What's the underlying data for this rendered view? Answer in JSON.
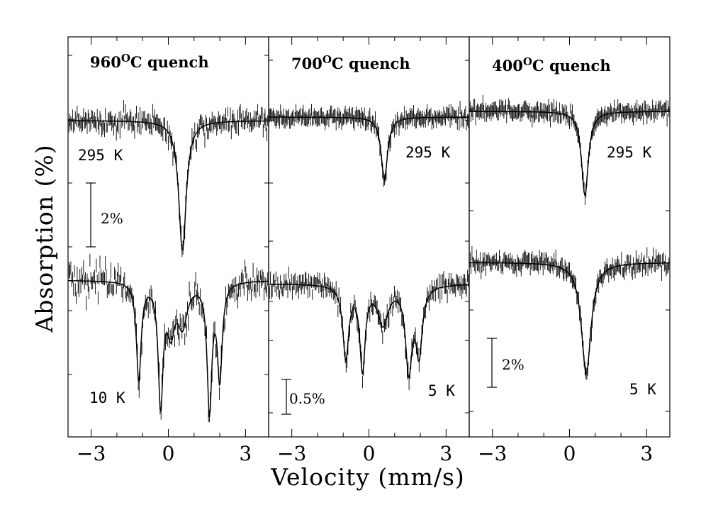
{
  "chart_data": {
    "type": "line",
    "figure": {
      "xlabel": "Velocity (mm/s)",
      "ylabel": "Absorption (%)",
      "xlim": [
        -3.9,
        3.9
      ],
      "xticks": [
        -3,
        0,
        3
      ],
      "xtick_labels": [
        "−3",
        "0",
        "3"
      ]
    },
    "panels": [
      {
        "title": "960",
        "title_sup": "O",
        "title_rest": "C quench",
        "scale_bar": {
          "label": "2%",
          "value_percent": 2
        },
        "spectra": [
          {
            "temperature": "295 K",
            "baseline_percent": 0,
            "peaks": [
              {
                "v": 0.55,
                "depth": 4.1,
                "width": 0.35
              }
            ],
            "noise_percent": 0.35
          },
          {
            "temperature": "10 K",
            "baseline_percent": 0,
            "peaks": [
              {
                "v": -1.15,
                "depth": 3.1,
                "width": 0.22
              },
              {
                "v": -0.3,
                "depth": 3.8,
                "width": 0.22
              },
              {
                "v": 0.55,
                "depth": 1.3,
                "width": 0.45
              },
              {
                "v": 1.6,
                "depth": 4.0,
                "width": 0.22
              },
              {
                "v": 2.0,
                "depth": 3.0,
                "width": 0.22
              },
              {
                "v": 0.1,
                "depth": 1.4,
                "width": 0.35
              }
            ],
            "noise_percent": 0.5
          }
        ]
      },
      {
        "title": "700",
        "title_sup": "O",
        "title_rest": "C quench",
        "scale_bar": {
          "label": "0.5%",
          "value_percent": 0.5
        },
        "spectra": [
          {
            "temperature": "295 K",
            "baseline_percent": 0,
            "peaks": [
              {
                "v": 0.6,
                "depth": 0.9,
                "width": 0.3
              }
            ],
            "noise_percent": 0.09
          },
          {
            "temperature": "5 K",
            "baseline_percent": 0,
            "peaks": [
              {
                "v": -0.9,
                "depth": 1.05,
                "width": 0.28
              },
              {
                "v": -0.25,
                "depth": 1.2,
                "width": 0.25
              },
              {
                "v": 0.55,
                "depth": 0.55,
                "width": 0.5
              },
              {
                "v": 1.55,
                "depth": 1.2,
                "width": 0.3
              },
              {
                "v": 1.95,
                "depth": 0.95,
                "width": 0.3
              }
            ],
            "noise_percent": 0.14
          }
        ]
      },
      {
        "title": "400",
        "title_sup": "O",
        "title_rest": "C quench",
        "scale_bar": {
          "label": "2%",
          "value_percent": 2
        },
        "spectra": [
          {
            "temperature": "295 K",
            "baseline_percent": 0,
            "peaks": [
              {
                "v": 0.6,
                "depth": 3.4,
                "width": 0.32
              }
            ],
            "noise_percent": 0.25
          },
          {
            "temperature": "5 K",
            "baseline_percent": 0,
            "peaks": [
              {
                "v": 0.65,
                "depth": 4.5,
                "width": 0.45
              }
            ],
            "noise_percent": 0.3
          }
        ]
      }
    ]
  }
}
